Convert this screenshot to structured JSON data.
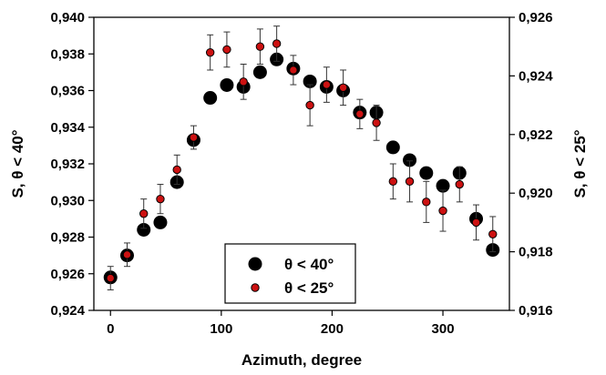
{
  "chart_data": {
    "type": "scatter",
    "x": [
      0,
      15,
      30,
      45,
      60,
      75,
      90,
      105,
      120,
      135,
      150,
      165,
      180,
      195,
      210,
      225,
      240,
      255,
      270,
      285,
      300,
      315,
      330,
      345
    ],
    "xlabel": "Azimuth, degree",
    "xlim": [
      -15,
      360
    ],
    "xticks": [
      0,
      100,
      200,
      300
    ],
    "xtick_labels": [
      "0",
      "100",
      "200",
      "300"
    ],
    "ylabel_left": "S, θ < 40°",
    "ylim_left": [
      0.924,
      0.94
    ],
    "yticks_left": [
      0.924,
      0.926,
      0.928,
      0.93,
      0.932,
      0.934,
      0.936,
      0.938,
      0.94
    ],
    "ytick_labels_left": [
      "0,924",
      "0,926",
      "0,928",
      "0,930",
      "0,932",
      "0,934",
      "0,936",
      "0,938",
      "0,940"
    ],
    "ylabel_right": "S, θ < 25°",
    "ylim_right": [
      0.916,
      0.926
    ],
    "yticks_right": [
      0.916,
      0.918,
      0.92,
      0.922,
      0.924,
      0.926
    ],
    "ytick_labels_right": [
      "0,916",
      "0,918",
      "0,920",
      "0,922",
      "0,924",
      "0,926"
    ],
    "grid": false,
    "legend_placement": "bottom-center",
    "series": [
      {
        "name": "θ < 40°",
        "axis": "left",
        "marker": "circle-large",
        "color": "#000000",
        "values": [
          0.9258,
          0.927,
          0.9284,
          0.9288,
          0.931,
          0.9333,
          0.9356,
          0.9363,
          0.9362,
          0.937,
          0.9377,
          0.9372,
          0.9365,
          0.9362,
          0.936,
          0.9348,
          0.9348,
          0.9329,
          0.9322,
          0.9315,
          0.9308,
          0.9315,
          0.929,
          0.9273
        ],
        "errors": [
          0.0003,
          0.0003,
          0.0003,
          0.0003,
          0.0003,
          0.0003,
          0.0003,
          0.0003,
          0.0003,
          0.0003,
          0.0003,
          0.0003,
          0.0003,
          0.0003,
          0.0003,
          0.0003,
          0.0003,
          0.0003,
          0.0003,
          0.0003,
          0.0003,
          0.0003,
          0.0003,
          0.0003
        ]
      },
      {
        "name": "θ < 25°",
        "axis": "right",
        "marker": "circle-small",
        "color": "#cc1111",
        "values": [
          0.9171,
          0.9179,
          0.9193,
          0.9198,
          0.9208,
          0.9219,
          0.9248,
          0.9249,
          0.9238,
          0.925,
          0.9251,
          0.9242,
          0.923,
          0.9237,
          0.9236,
          0.9227,
          0.9224,
          0.9204,
          0.9204,
          0.9197,
          0.9194,
          0.9203,
          0.919,
          0.9186
        ],
        "errors": [
          0.0004,
          0.0004,
          0.0005,
          0.0005,
          0.0005,
          0.0004,
          0.0006,
          0.0006,
          0.0006,
          0.0006,
          0.0006,
          0.0005,
          0.0007,
          0.0006,
          0.0006,
          0.0005,
          0.0006,
          0.0006,
          0.0007,
          0.0007,
          0.0007,
          0.0006,
          0.0006,
          0.0006
        ]
      }
    ]
  }
}
